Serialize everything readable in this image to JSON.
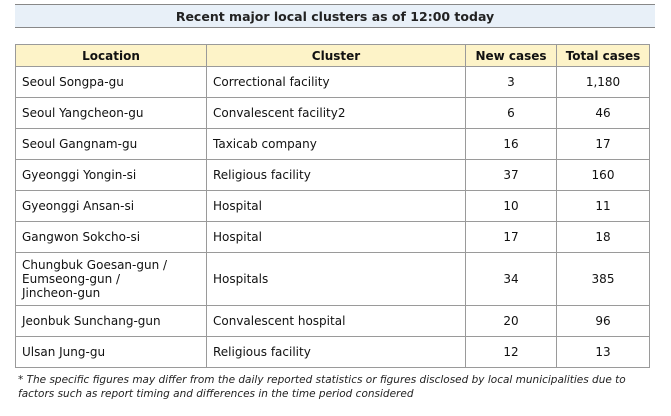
{
  "title": "Recent major local clusters as of 12:00 today",
  "table": {
    "headers": [
      "Location",
      "Cluster",
      "New cases",
      "Total cases"
    ],
    "rows": [
      {
        "location": "Seoul  Songpa-gu",
        "cluster": "Correctional facility",
        "new_cases": "3",
        "total_cases": "1,180"
      },
      {
        "location": "Seoul  Yangcheon-gu",
        "cluster": "Convalescent facility2",
        "new_cases": "6",
        "total_cases": "46"
      },
      {
        "location": "Seoul  Gangnam-gu",
        "cluster": "Taxicab company",
        "new_cases": "16",
        "total_cases": "17"
      },
      {
        "location": "Gyeonggi  Yongin-si",
        "cluster": "Religious facility",
        "new_cases": "37",
        "total_cases": "160"
      },
      {
        "location": "Gyeonggi  Ansan-si",
        "cluster": "Hospital",
        "new_cases": "10",
        "total_cases": "11"
      },
      {
        "location": "Gangwon  Sokcho-si",
        "cluster": "Hospital",
        "new_cases": "17",
        "total_cases": "18"
      },
      {
        "location_lines": [
          "Chungbuk  Goesan-gun /",
          "Eumseong-gun /",
          "Jincheon-gun"
        ],
        "cluster": "Hospitals",
        "new_cases": "34",
        "total_cases": "385"
      },
      {
        "location": "Jeonbuk  Sunchang-gun",
        "cluster": "Convalescent hospital",
        "new_cases": "20",
        "total_cases": "96"
      },
      {
        "location": "Ulsan  Jung-gu",
        "cluster": "Religious facility",
        "new_cases": "12",
        "total_cases": "13"
      }
    ]
  },
  "footnote_lines": [
    "* The specific figures may differ from the daily reported statistics or figures disclosed by local municipalities due to",
    "factors such as report timing and differences in the time period considered"
  ]
}
